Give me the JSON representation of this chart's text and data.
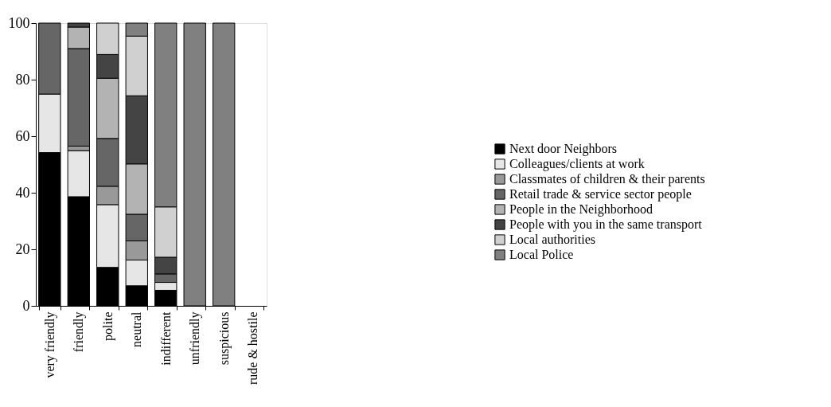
{
  "chart_data": {
    "type": "bar",
    "stacked": true,
    "categories": [
      "very friendly",
      "friendly",
      "polite",
      "neutral",
      "indifferent",
      "unfriendly",
      "suspicious",
      "rude & hostile"
    ],
    "series": [
      {
        "name": "Next door Neighbors",
        "color": "#000000",
        "values": [
          54.2,
          38.6,
          13.6,
          7.1,
          5.5,
          null,
          null,
          null
        ]
      },
      {
        "name": "Colleagues/clients at work",
        "color": "#e6e6e6",
        "values": [
          20.7,
          16.3,
          22.2,
          9.1,
          2.8,
          null,
          null,
          null
        ]
      },
      {
        "name": "Classmates of children & their parents",
        "color": "#999999",
        "values": [
          null,
          1.6,
          6.5,
          6.8,
          null,
          null,
          null,
          null
        ]
      },
      {
        "name": "Retail trade & service sector people",
        "color": "#666666",
        "values": [
          25.1,
          34.5,
          16.9,
          9.4,
          3.0,
          null,
          null,
          null
        ]
      },
      {
        "name": "People in the Neighborhood",
        "color": "#b3b3b3",
        "values": [
          null,
          7.6,
          21.3,
          17.8,
          null,
          null,
          null,
          null
        ]
      },
      {
        "name": "People with you in the same transport",
        "color": "#444444",
        "values": [
          null,
          1.4,
          8.4,
          24.1,
          5.9,
          null,
          null,
          null
        ]
      },
      {
        "name": "Local authorities",
        "color": "#d0d0d0",
        "values": [
          null,
          null,
          11.1,
          21.1,
          17.8,
          null,
          null,
          null
        ]
      },
      {
        "name": "Local Police",
        "color": "#808080",
        "values": [
          null,
          null,
          null,
          4.6,
          65.0,
          100,
          100,
          null
        ]
      }
    ],
    "ylim": [
      0,
      100
    ],
    "yticks": [
      0,
      20,
      40,
      60,
      80,
      100
    ],
    "grid": false,
    "legend": "right"
  }
}
